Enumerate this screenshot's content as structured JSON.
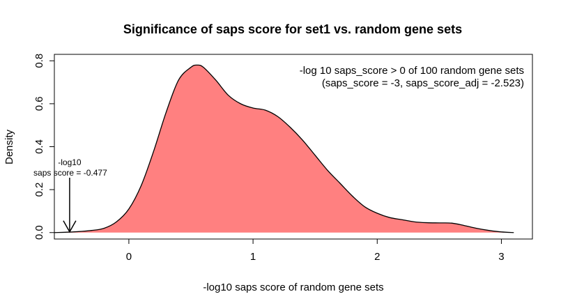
{
  "chart_data": {
    "type": "area",
    "title": "Significance of saps score for  set1 vs. random gene sets",
    "xlabel": "-log10 saps score of random gene sets",
    "ylabel": "Density",
    "xlim": [
      -0.6,
      3.25
    ],
    "ylim": [
      -0.03,
      0.83
    ],
    "x_ticks": [
      0,
      1,
      2,
      3
    ],
    "y_ticks": [
      0.0,
      0.2,
      0.4,
      0.6,
      0.8
    ],
    "x_tick_labels": [
      "0",
      "1",
      "2",
      "3"
    ],
    "y_tick_labels": [
      "0.0",
      "0.2",
      "0.4",
      "0.6",
      "0.8"
    ],
    "fill_color": "#ff8080",
    "line_color": "#000000",
    "series": [
      {
        "x": [
          -0.6,
          -0.45,
          -0.3,
          -0.2,
          -0.1,
          0.0,
          0.1,
          0.2,
          0.3,
          0.4,
          0.5,
          0.55,
          0.6,
          0.7,
          0.8,
          0.9,
          1.0,
          1.1,
          1.2,
          1.3,
          1.4,
          1.5,
          1.6,
          1.7,
          1.8,
          1.9,
          2.0,
          2.1,
          2.2,
          2.3,
          2.4,
          2.5,
          2.6,
          2.7,
          2.8,
          2.9,
          3.0,
          3.1
        ],
        "y": [
          0.0,
          0.003,
          0.01,
          0.02,
          0.05,
          0.11,
          0.22,
          0.38,
          0.56,
          0.71,
          0.77,
          0.78,
          0.77,
          0.71,
          0.64,
          0.6,
          0.58,
          0.57,
          0.54,
          0.49,
          0.43,
          0.36,
          0.29,
          0.23,
          0.17,
          0.12,
          0.09,
          0.07,
          0.06,
          0.05,
          0.046,
          0.045,
          0.044,
          0.033,
          0.02,
          0.01,
          0.003,
          0.0
        ]
      }
    ],
    "marker": {
      "x": -0.477,
      "label_line1": "-log10",
      "label_line2": "saps score =  -0.477"
    },
    "annotation": {
      "line1": "-log 10 saps_score > 0 of 100 random gene sets",
      "line2": "(saps_score = -3, saps_score_adj = -2.523)"
    }
  }
}
